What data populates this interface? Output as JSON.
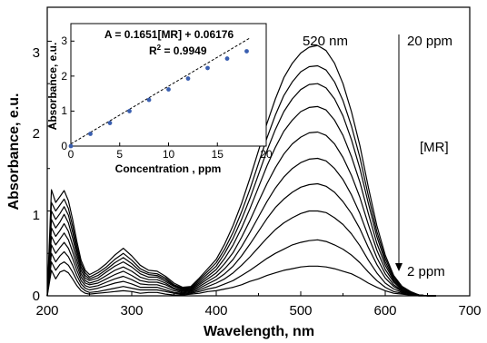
{
  "chart_data": [
    {
      "type": "line",
      "xlabel": "Wavelength, nm",
      "ylabel": "Absorbance, e.u.",
      "xlim": [
        200,
        700
      ],
      "ylim": [
        0,
        3.4
      ],
      "xticks": [
        200,
        300,
        400,
        500,
        600,
        700
      ],
      "yticks": [
        0,
        1,
        2,
        3
      ],
      "annotations": {
        "peak_label": "520 nm",
        "top_label": "20 ppm",
        "middle_label": "[MR]",
        "bottom_label": "2 ppm"
      },
      "x": [
        200,
        205,
        210,
        215,
        220,
        225,
        230,
        235,
        240,
        245,
        250,
        260,
        270,
        280,
        290,
        300,
        310,
        320,
        330,
        340,
        350,
        360,
        370,
        380,
        390,
        400,
        410,
        420,
        430,
        440,
        450,
        460,
        470,
        480,
        490,
        500,
        510,
        520,
        530,
        540,
        550,
        560,
        570,
        580,
        590,
        600,
        610,
        620,
        630,
        640,
        650,
        660
      ],
      "series": [
        {
          "values": [
            0.0,
            0.3,
            0.2,
            0.28,
            0.3,
            0.27,
            0.2,
            0.12,
            0.06,
            0.03,
            0.02,
            0.03,
            0.04,
            0.05,
            0.06,
            0.05,
            0.03,
            0.04,
            0.04,
            0.02,
            0.01,
            0.01,
            0.02,
            0.03,
            0.05,
            0.06,
            0.08,
            0.1,
            0.13,
            0.17,
            0.2,
            0.24,
            0.27,
            0.3,
            0.32,
            0.34,
            0.35,
            0.35,
            0.34,
            0.32,
            0.29,
            0.26,
            0.21,
            0.15,
            0.1,
            0.06,
            0.03,
            0.02,
            0.01,
            0.0,
            0.0,
            0.0
          ]
        },
        {
          "values": [
            0.0,
            0.4,
            0.3,
            0.37,
            0.4,
            0.36,
            0.28,
            0.18,
            0.1,
            0.06,
            0.04,
            0.05,
            0.07,
            0.09,
            0.11,
            0.09,
            0.07,
            0.07,
            0.07,
            0.05,
            0.03,
            0.02,
            0.03,
            0.05,
            0.08,
            0.1,
            0.14,
            0.18,
            0.24,
            0.3,
            0.37,
            0.44,
            0.5,
            0.55,
            0.6,
            0.63,
            0.65,
            0.66,
            0.64,
            0.6,
            0.55,
            0.48,
            0.39,
            0.28,
            0.18,
            0.1,
            0.05,
            0.03,
            0.01,
            0.0,
            0.0,
            0.0
          ]
        },
        {
          "values": [
            0.0,
            0.5,
            0.4,
            0.47,
            0.52,
            0.46,
            0.36,
            0.24,
            0.14,
            0.09,
            0.07,
            0.09,
            0.12,
            0.15,
            0.17,
            0.14,
            0.1,
            0.1,
            0.1,
            0.07,
            0.04,
            0.03,
            0.04,
            0.07,
            0.11,
            0.15,
            0.2,
            0.27,
            0.36,
            0.46,
            0.57,
            0.68,
            0.78,
            0.86,
            0.92,
            0.97,
            1.0,
            1.0,
            0.98,
            0.92,
            0.84,
            0.73,
            0.59,
            0.42,
            0.27,
            0.15,
            0.08,
            0.04,
            0.02,
            0.01,
            0.0,
            0.0
          ]
        },
        {
          "values": [
            0.0,
            0.6,
            0.5,
            0.57,
            0.63,
            0.56,
            0.44,
            0.3,
            0.18,
            0.12,
            0.1,
            0.12,
            0.16,
            0.2,
            0.23,
            0.19,
            0.14,
            0.13,
            0.13,
            0.1,
            0.06,
            0.04,
            0.05,
            0.09,
            0.14,
            0.19,
            0.26,
            0.35,
            0.47,
            0.61,
            0.76,
            0.91,
            1.04,
            1.14,
            1.22,
            1.28,
            1.31,
            1.32,
            1.29,
            1.22,
            1.11,
            0.97,
            0.79,
            0.57,
            0.37,
            0.21,
            0.11,
            0.05,
            0.02,
            0.01,
            0.0,
            0.0
          ]
        },
        {
          "values": [
            0.0,
            0.7,
            0.6,
            0.67,
            0.74,
            0.66,
            0.52,
            0.36,
            0.22,
            0.15,
            0.13,
            0.15,
            0.2,
            0.25,
            0.29,
            0.24,
            0.18,
            0.16,
            0.16,
            0.13,
            0.08,
            0.05,
            0.06,
            0.11,
            0.17,
            0.23,
            0.32,
            0.43,
            0.58,
            0.75,
            0.93,
            1.11,
            1.27,
            1.4,
            1.5,
            1.57,
            1.61,
            1.62,
            1.59,
            1.5,
            1.37,
            1.19,
            0.97,
            0.7,
            0.45,
            0.26,
            0.13,
            0.06,
            0.03,
            0.01,
            0.0,
            0.0
          ]
        },
        {
          "values": [
            0.0,
            0.8,
            0.7,
            0.77,
            0.85,
            0.76,
            0.6,
            0.42,
            0.26,
            0.18,
            0.15,
            0.18,
            0.24,
            0.3,
            0.34,
            0.29,
            0.22,
            0.19,
            0.19,
            0.15,
            0.09,
            0.06,
            0.07,
            0.13,
            0.2,
            0.27,
            0.38,
            0.51,
            0.69,
            0.89,
            1.11,
            1.32,
            1.51,
            1.67,
            1.79,
            1.87,
            1.92,
            1.93,
            1.89,
            1.79,
            1.63,
            1.42,
            1.16,
            0.84,
            0.54,
            0.31,
            0.16,
            0.07,
            0.03,
            0.01,
            0.0,
            0.0
          ]
        },
        {
          "values": [
            0.0,
            0.9,
            0.8,
            0.87,
            0.96,
            0.86,
            0.68,
            0.48,
            0.3,
            0.21,
            0.18,
            0.21,
            0.28,
            0.35,
            0.4,
            0.34,
            0.26,
            0.22,
            0.22,
            0.17,
            0.11,
            0.07,
            0.08,
            0.15,
            0.23,
            0.31,
            0.44,
            0.6,
            0.8,
            1.03,
            1.28,
            1.53,
            1.75,
            1.94,
            2.07,
            2.17,
            2.22,
            2.23,
            2.19,
            2.07,
            1.89,
            1.64,
            1.34,
            0.97,
            0.62,
            0.36,
            0.18,
            0.08,
            0.04,
            0.01,
            0.0,
            0.0
          ]
        },
        {
          "values": [
            0.0,
            1.0,
            0.9,
            0.97,
            1.05,
            0.95,
            0.75,
            0.53,
            0.34,
            0.24,
            0.2,
            0.24,
            0.31,
            0.39,
            0.45,
            0.38,
            0.29,
            0.25,
            0.24,
            0.19,
            0.12,
            0.08,
            0.09,
            0.17,
            0.26,
            0.35,
            0.5,
            0.68,
            0.9,
            1.15,
            1.43,
            1.71,
            1.96,
            2.17,
            2.32,
            2.43,
            2.49,
            2.5,
            2.45,
            2.32,
            2.12,
            1.84,
            1.5,
            1.09,
            0.7,
            0.4,
            0.2,
            0.09,
            0.04,
            0.01,
            0.0,
            0.0
          ]
        },
        {
          "values": [
            0.0,
            1.1,
            1.0,
            1.07,
            1.14,
            1.03,
            0.82,
            0.58,
            0.38,
            0.27,
            0.22,
            0.27,
            0.34,
            0.43,
            0.5,
            0.42,
            0.32,
            0.27,
            0.26,
            0.21,
            0.13,
            0.09,
            0.1,
            0.19,
            0.29,
            0.39,
            0.55,
            0.75,
            0.99,
            1.26,
            1.56,
            1.86,
            2.13,
            2.36,
            2.52,
            2.64,
            2.7,
            2.71,
            2.66,
            2.52,
            2.3,
            2.0,
            1.63,
            1.18,
            0.76,
            0.44,
            0.22,
            0.1,
            0.04,
            0.01,
            0.0,
            0.0
          ]
        },
        {
          "values": [
            0.0,
            1.25,
            1.1,
            1.17,
            1.24,
            1.12,
            0.9,
            0.64,
            0.42,
            0.3,
            0.25,
            0.3,
            0.38,
            0.48,
            0.56,
            0.47,
            0.36,
            0.3,
            0.29,
            0.23,
            0.15,
            0.1,
            0.11,
            0.21,
            0.32,
            0.43,
            0.61,
            0.83,
            1.09,
            1.39,
            1.71,
            2.03,
            2.32,
            2.57,
            2.74,
            2.86,
            2.93,
            2.95,
            2.89,
            2.74,
            2.5,
            2.17,
            1.77,
            1.28,
            0.83,
            0.48,
            0.24,
            0.11,
            0.05,
            0.01,
            0.0,
            0.0
          ]
        }
      ]
    },
    {
      "type": "scatter",
      "xlabel": "Concentration , ppm",
      "ylabel": "Absorbance, e.u.",
      "xlim": [
        0,
        20
      ],
      "ylim": [
        0,
        3.5
      ],
      "xticks": [
        0,
        5,
        10,
        15,
        20
      ],
      "yticks": [
        0,
        1,
        2,
        3
      ],
      "equation": "A = 0.1651[MR] + 0.06176",
      "r2_label": "R",
      "r2_superscript": "2",
      "r2_value": " = 0.9949",
      "fit": {
        "slope": 0.1651,
        "intercept": 0.06176
      },
      "x": [
        0,
        2,
        4,
        6,
        8,
        10,
        12,
        14,
        16,
        18
      ],
      "y": [
        0.0,
        0.35,
        0.66,
        1.0,
        1.32,
        1.62,
        1.93,
        2.23,
        2.5,
        2.71
      ]
    }
  ]
}
